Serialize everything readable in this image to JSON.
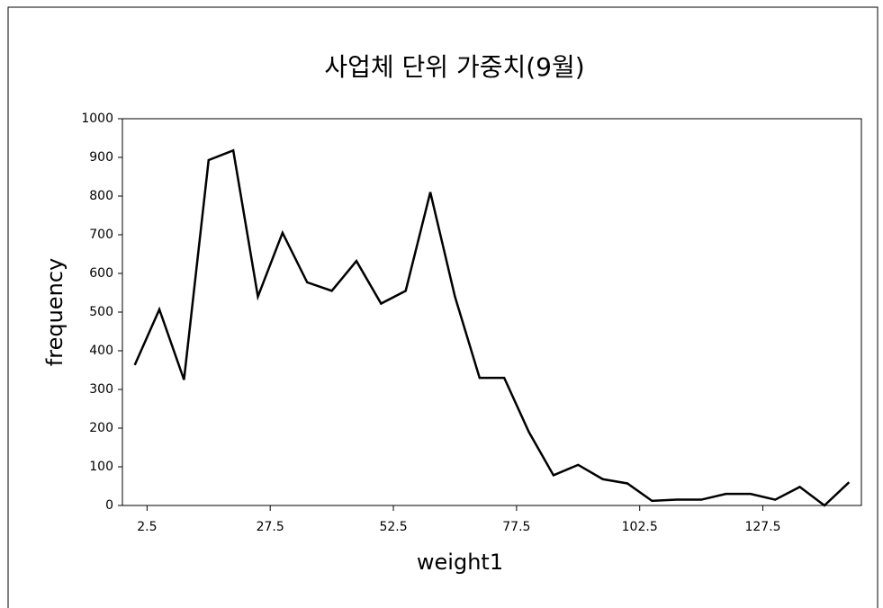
{
  "chart_data": {
    "type": "line",
    "title": "사업체 단위 가중치(9월)",
    "x_label": "weight1",
    "y_label": "frequency",
    "x": [
      0,
      5,
      10,
      15,
      20,
      25,
      30,
      35,
      40,
      45,
      50,
      55,
      60,
      65,
      70,
      75,
      80,
      85,
      90,
      95,
      100,
      105,
      110,
      115,
      120,
      125,
      130,
      135,
      140,
      145
    ],
    "series": [
      {
        "name": "frequency",
        "color": "#000000",
        "values": [
          363,
          507,
          325,
          893,
          918,
          540,
          705,
          577,
          555,
          632,
          522,
          555,
          810,
          540,
          330,
          330,
          190,
          78,
          105,
          68,
          57,
          12,
          15,
          15,
          30,
          30,
          15,
          48,
          0,
          60
        ]
      }
    ],
    "xlim": [
      -2.5,
      147.5
    ],
    "xticks": [
      2.5,
      27.5,
      52.5,
      77.5,
      102.5,
      127.5
    ],
    "ylim": [
      0,
      1000
    ],
    "yticks": [
      0,
      100,
      200,
      300,
      400,
      500,
      600,
      700,
      800,
      900,
      1000
    ],
    "grid": false
  }
}
